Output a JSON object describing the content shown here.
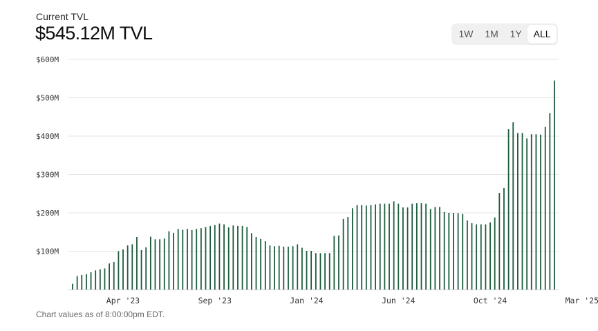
{
  "header": {
    "subtitle": "Current TVL",
    "headline": "$545.12M TVL"
  },
  "range_selector": {
    "options": [
      "1W",
      "1M",
      "1Y",
      "ALL"
    ],
    "selected": "ALL"
  },
  "footnote": "Chart values as of 8:00:00pm EDT.",
  "colors": {
    "bar": "#1e5b3c",
    "grid": "#e6e6e6",
    "axis": "#cfcfcf"
  },
  "chart_data": {
    "type": "bar",
    "ylim": [
      0,
      600
    ],
    "y_unit": "M",
    "y_ticks": [
      {
        "value": 100,
        "label": "$100M"
      },
      {
        "value": 200,
        "label": "$200M"
      },
      {
        "value": 300,
        "label": "$300M"
      },
      {
        "value": 400,
        "label": "$400M"
      },
      {
        "value": 500,
        "label": "$500M"
      },
      {
        "value": 600,
        "label": "$600M"
      }
    ],
    "x_ticks": [
      {
        "label": "Apr '23",
        "index": 11
      },
      {
        "label": "Sep '23",
        "index": 31
      },
      {
        "label": "Jan '24",
        "index": 51
      },
      {
        "label": "Jun '24",
        "index": 71
      },
      {
        "label": "Oct '24",
        "index": 91
      },
      {
        "label": "Mar '25",
        "index": 111
      }
    ],
    "grid": true,
    "legend": "none",
    "values": [
      15,
      35,
      38,
      40,
      45,
      50,
      53,
      55,
      68,
      72,
      100,
      105,
      115,
      118,
      137,
      103,
      110,
      138,
      131,
      131,
      133,
      152,
      148,
      158,
      156,
      158,
      155,
      158,
      160,
      163,
      166,
      168,
      172,
      170,
      162,
      167,
      166,
      166,
      163,
      147,
      137,
      132,
      126,
      115,
      113,
      114,
      112,
      112,
      113,
      118,
      109,
      101,
      101,
      95,
      95,
      95,
      95,
      140,
      141,
      184,
      189,
      212,
      220,
      220,
      219,
      220,
      222,
      224,
      224,
      224,
      230,
      224,
      214,
      214,
      224,
      225,
      225,
      224,
      210,
      215,
      215,
      202,
      200,
      200,
      199,
      197,
      180,
      173,
      170,
      170,
      170,
      175,
      188,
      252,
      265,
      418,
      436,
      408,
      408,
      394,
      405,
      405,
      404,
      424,
      460,
      545
    ]
  }
}
